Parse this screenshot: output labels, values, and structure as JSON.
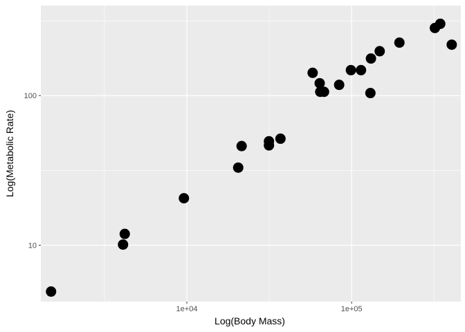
{
  "chart_data": {
    "type": "scatter",
    "xlabel": "Log(Body Mass)",
    "ylabel": "Log(Metabolic Rate)",
    "x_scale": "log10",
    "y_scale": "log10",
    "xlim": [
      1300,
      460000
    ],
    "ylim": [
      4.2,
      400
    ],
    "x_ticks": [
      {
        "value": 10000,
        "label": "1e+04"
      },
      {
        "value": 100000,
        "label": "1e+05"
      }
    ],
    "y_ticks": [
      {
        "value": 10,
        "label": "10"
      },
      {
        "value": 100,
        "label": "100"
      }
    ],
    "x_minor_gridlines": [
      3162,
      31623,
      316228
    ],
    "y_minor_gridlines": [
      31.6,
      316
    ],
    "grid": true,
    "legend": "none",
    "colors": {
      "panel_background": "#ebebeb",
      "gridline": "#ffffff",
      "point": "#000000"
    },
    "points": [
      {
        "x": 1500,
        "y": 4.9
      },
      {
        "x": 4100,
        "y": 10.1
      },
      {
        "x": 4200,
        "y": 11.9
      },
      {
        "x": 9600,
        "y": 20.6
      },
      {
        "x": 20500,
        "y": 33
      },
      {
        "x": 21500,
        "y": 46
      },
      {
        "x": 31500,
        "y": 46.5
      },
      {
        "x": 31500,
        "y": 49.5
      },
      {
        "x": 37000,
        "y": 51.5
      },
      {
        "x": 58000,
        "y": 142
      },
      {
        "x": 64000,
        "y": 121
      },
      {
        "x": 64500,
        "y": 106
      },
      {
        "x": 68000,
        "y": 106
      },
      {
        "x": 84000,
        "y": 118
      },
      {
        "x": 99000,
        "y": 148
      },
      {
        "x": 114000,
        "y": 148
      },
      {
        "x": 130000,
        "y": 104
      },
      {
        "x": 131000,
        "y": 177
      },
      {
        "x": 148000,
        "y": 198
      },
      {
        "x": 195000,
        "y": 226
      },
      {
        "x": 320000,
        "y": 283
      },
      {
        "x": 345000,
        "y": 302
      },
      {
        "x": 405000,
        "y": 219
      }
    ]
  }
}
